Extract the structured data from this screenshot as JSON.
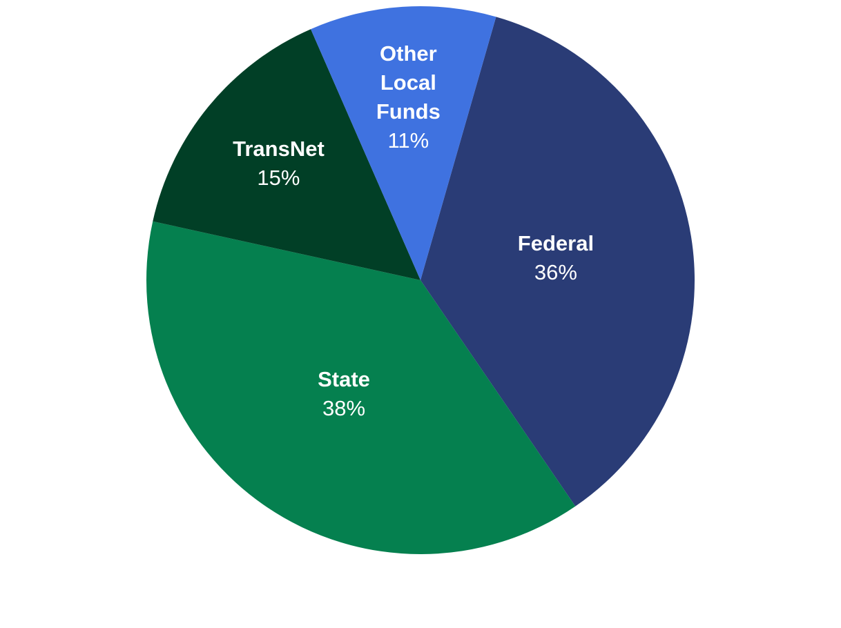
{
  "chart_data": {
    "type": "pie",
    "categories": [
      "Federal",
      "State",
      "TransNet",
      "Other Local Funds"
    ],
    "values": [
      36,
      38,
      15,
      11
    ],
    "value_labels": [
      "36%",
      "38%",
      "15%",
      "11%"
    ],
    "colors": [
      "#2a3c76",
      "#05804f",
      "#013f26",
      "#3f72e0"
    ]
  }
}
